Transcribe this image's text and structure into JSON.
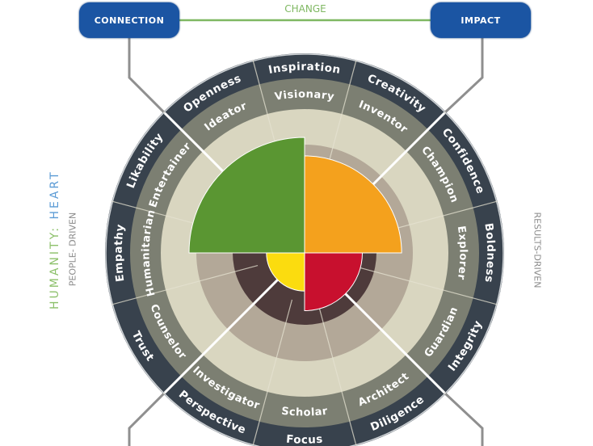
{
  "header": {
    "left_box": "CONNECTION",
    "right_box": "IMPACT",
    "center_label": "CHANGE"
  },
  "side": {
    "humanity": "HUMANITY:",
    "heart": "HEART",
    "people_driven": "PEOPLE- DRIVEN",
    "results_driven": "RESULTS-DRIVEN"
  },
  "wheel": {
    "outer_labels": [
      "Boldness",
      "Confidence",
      "Creativity",
      "Inspiration",
      "Openness",
      "Likability",
      "Empathy",
      "Trust",
      "Perspective",
      "Focus",
      "Diligence",
      "Integrity"
    ],
    "inner_labels": [
      "Explorer",
      "Champion",
      "Inventor",
      "Visionary",
      "Ideator",
      "Entertainer",
      "Humanitarian",
      "Counselor",
      "Investigator",
      "Scholar",
      "Architect",
      "Guardian"
    ],
    "quadrants": [
      {
        "name": "green",
        "color": "#5a9632",
        "level": 1.0
      },
      {
        "name": "orange",
        "color": "#f4a11d",
        "level": 0.84
      },
      {
        "name": "yellow",
        "color": "#fbdc0f",
        "level": 0.33
      },
      {
        "name": "red",
        "color": "#c8102e",
        "level": 0.5
      }
    ]
  },
  "colors": {
    "outer_ring": "#38424d",
    "middle_ring": "#7c7f72",
    "beige_ring": "#d9d6c0",
    "tan_ring": "#b3a898",
    "brown_ring": "#4e3b3b",
    "blue": "#1b55a3",
    "green": "#7fb862",
    "heart_blue": "#5b9bd5"
  }
}
